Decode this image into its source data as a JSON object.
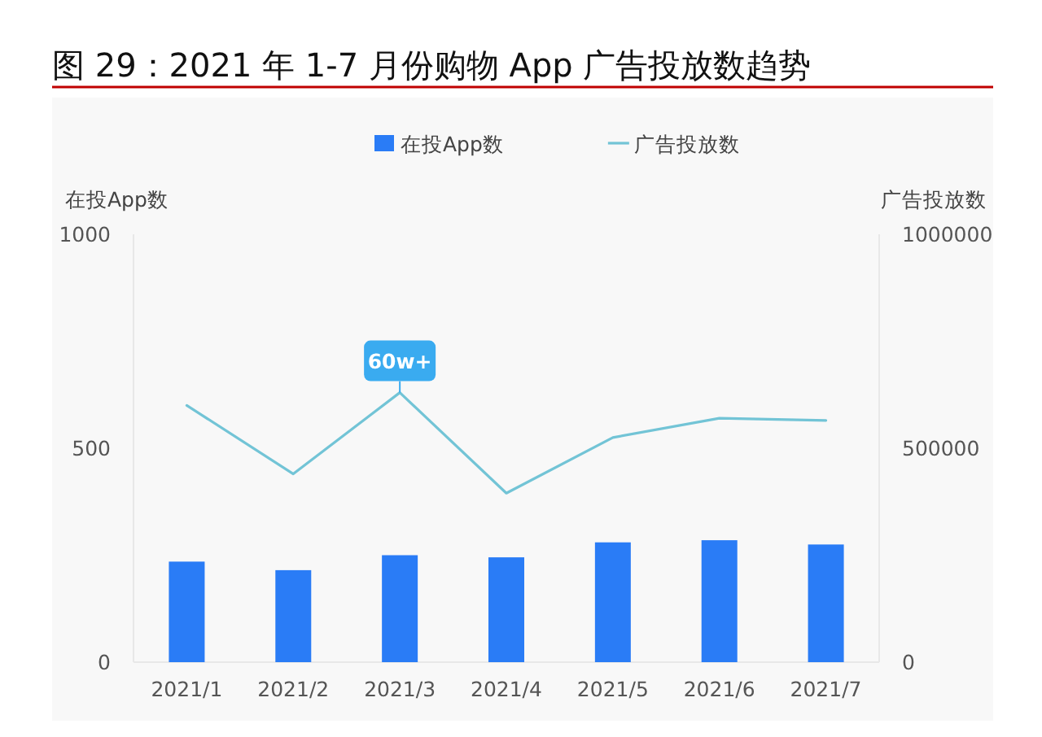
{
  "chart_data": {
    "type": "bar",
    "title": "图 29：2021 年 1-7 月份购物 App 广告投放数趋势",
    "categories": [
      "2021/1",
      "2021/2",
      "2021/3",
      "2021/4",
      "2021/5",
      "2021/6",
      "2021/7"
    ],
    "series": [
      {
        "name": "在投App数",
        "color": "#2a7cf6",
        "values": [
          235,
          215,
          250,
          245,
          280,
          285,
          275
        ]
      },
      {
        "name": "广告投放数",
        "type": "line",
        "axis": "y2",
        "color": "#72c4d6",
        "values": [
          600000,
          440000,
          630000,
          395000,
          525000,
          570000,
          565000
        ]
      }
    ],
    "ylabel": "在投App数",
    "y2label": "广告投放数",
    "ylim": [
      0,
      1000
    ],
    "yticks": [
      0,
      500,
      1000
    ],
    "y2lim": [
      0,
      1000000
    ],
    "y2ticks": [
      0,
      500000,
      1000000
    ],
    "legend": "top",
    "grid": false,
    "annotations": [
      "60w+"
    ]
  }
}
